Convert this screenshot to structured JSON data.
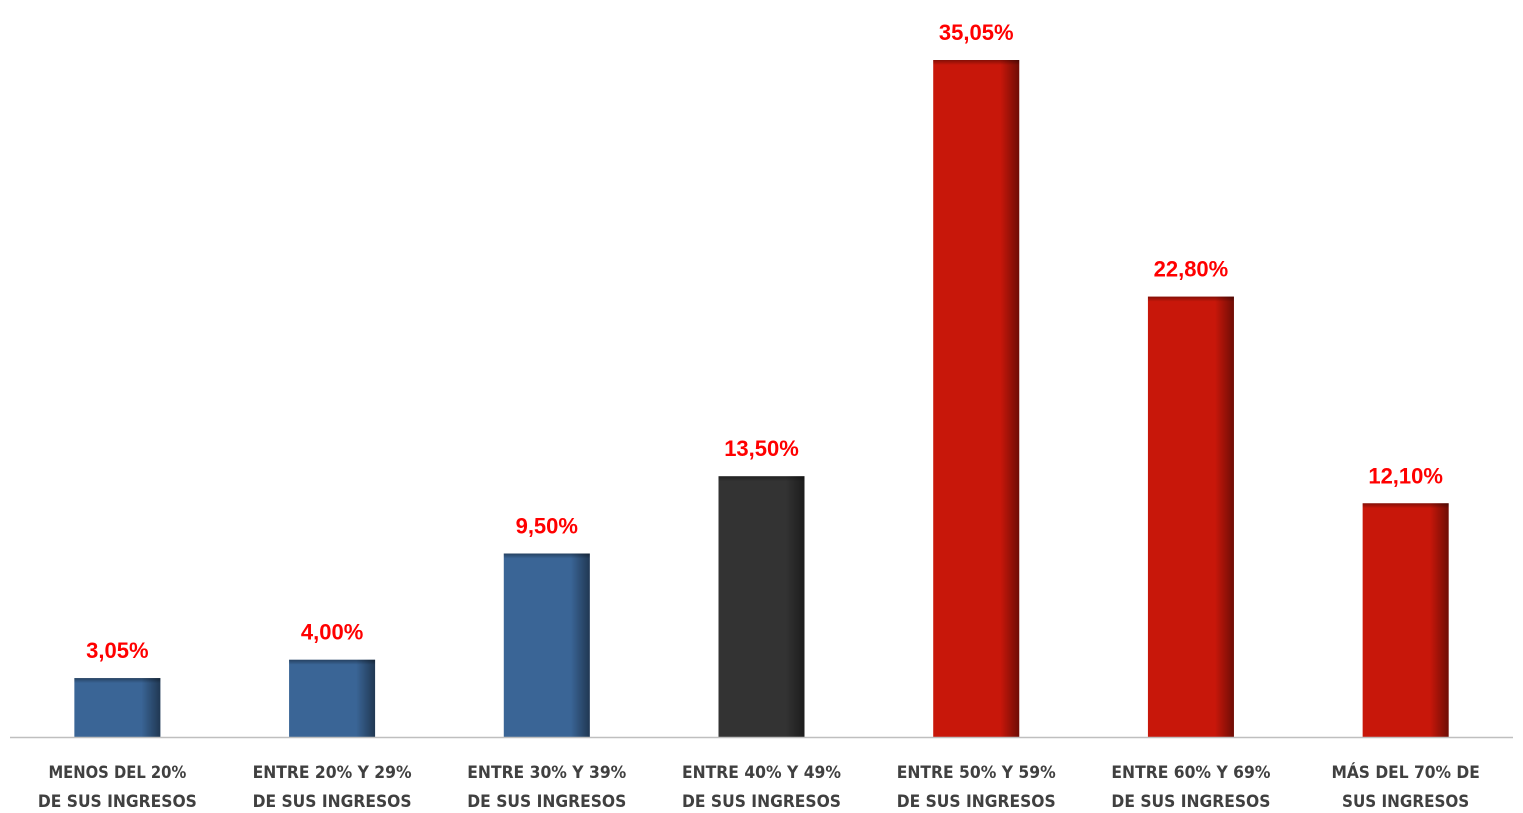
{
  "chart_data": {
    "type": "bar",
    "title": "",
    "xlabel": "",
    "ylabel": "",
    "ylim": [
      0,
      36
    ],
    "grid": false,
    "legend": "none",
    "categories": [
      [
        "MENOS DEL 20%",
        "DE SUS INGRESOS"
      ],
      [
        "ENTRE 20% Y 29%",
        "DE SUS INGRESOS"
      ],
      [
        "ENTRE 30% Y 39%",
        "DE SUS INGRESOS"
      ],
      [
        "ENTRE 40% Y 49%",
        "DE SUS INGRESOS"
      ],
      [
        "ENTRE 50% Y 59%",
        "DE SUS INGRESOS"
      ],
      [
        "ENTRE 60% Y 69%",
        "DE SUS INGRESOS"
      ],
      [
        "MÁS DEL 70% DE",
        "SUS INGRESOS"
      ]
    ],
    "values": [
      3.05,
      4.0,
      9.5,
      13.5,
      35.05,
      22.8,
      12.1
    ],
    "value_labels": [
      "3,05%",
      "4,00%",
      "9,50%",
      "13,50%",
      "35,05%",
      "22,80%",
      "12,10%"
    ],
    "bar_colors": [
      "#3a6596",
      "#3a6596",
      "#3a6596",
      "#333333",
      "#c8170a",
      "#c8170a",
      "#c8170a"
    ],
    "label_color": "#ff0000",
    "axis_color": "#bfbfbf"
  }
}
